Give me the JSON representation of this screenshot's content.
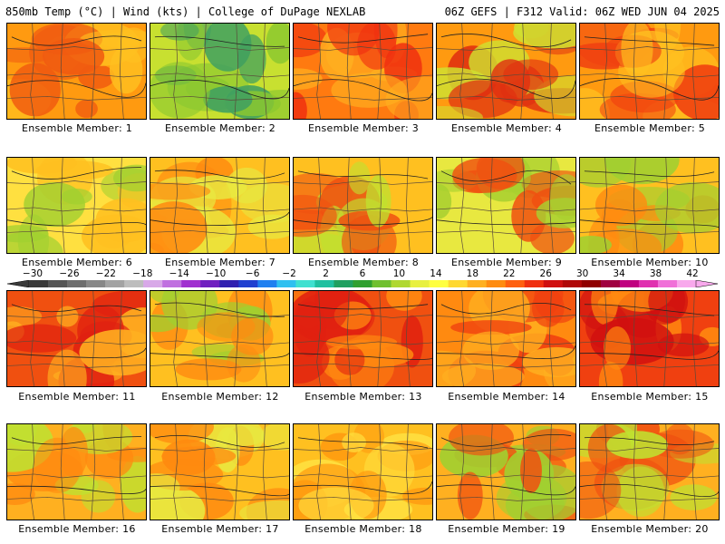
{
  "header": {
    "left": "850mb Temp (°C) | Wind (kts) | College of DuPage NEXLAB",
    "right": "06Z GEFS | F312 Valid: 06Z WED JUN 04 2025"
  },
  "colorbar": {
    "tick_labels": [
      "−30",
      "−26",
      "−22",
      "−18",
      "−14",
      "−10",
      "−6",
      "−2",
      "2",
      "6",
      "10",
      "14",
      "18",
      "22",
      "26",
      "30",
      "34",
      "38",
      "42"
    ],
    "colors": [
      "#3a3a3a",
      "#555555",
      "#6e6e6e",
      "#888888",
      "#a3a3a3",
      "#bdbdbd",
      "#d8a8e8",
      "#c070e0",
      "#a030d0",
      "#7020c0",
      "#3020b0",
      "#2040d0",
      "#2080f0",
      "#30c0f0",
      "#40e0d0",
      "#20c0a0",
      "#20a060",
      "#30a030",
      "#70c030",
      "#b0d830",
      "#e8f040",
      "#ffff40",
      "#ffd830",
      "#ffb020",
      "#ff8c10",
      "#ff6010",
      "#f03010",
      "#d01010",
      "#b00808",
      "#900000",
      "#a00040",
      "#c00080",
      "#e030b0",
      "#f070d8",
      "#f8a8ec"
    ]
  },
  "panels": [
    {
      "label": "Ensemble Member: 1",
      "palette": [
        "#ff9a10",
        "#ffc020",
        "#f05a10"
      ]
    },
    {
      "label": "Ensemble Member: 2",
      "palette": [
        "#c8e030",
        "#8cc830",
        "#40a060"
      ]
    },
    {
      "label": "Ensemble Member: 3",
      "palette": [
        "#ff7a10",
        "#f03010",
        "#ffb020"
      ]
    },
    {
      "label": "Ensemble Member: 4",
      "palette": [
        "#ff9a10",
        "#d0e030",
        "#e03010"
      ]
    },
    {
      "label": "Ensemble Member: 5",
      "palette": [
        "#ff9a10",
        "#f04010",
        "#ffc020"
      ]
    },
    {
      "label": "Ensemble Member: 6",
      "palette": [
        "#ffe040",
        "#ffc020",
        "#a0d030"
      ]
    },
    {
      "label": "Ensemble Member: 7",
      "palette": [
        "#ffc020",
        "#ff8a10",
        "#e8e840"
      ]
    },
    {
      "label": "Ensemble Member: 8",
      "palette": [
        "#ffc020",
        "#f05010",
        "#c0e030"
      ]
    },
    {
      "label": "Ensemble Member: 9",
      "palette": [
        "#e8e840",
        "#a8d030",
        "#f05010"
      ]
    },
    {
      "label": "Ensemble Member: 10",
      "palette": [
        "#ffc020",
        "#ff8a10",
        "#a0d030"
      ]
    },
    {
      "label": "Ensemble Member: 11",
      "palette": [
        "#f05010",
        "#e02010",
        "#ffb020"
      ]
    },
    {
      "label": "Ensemble Member: 12",
      "palette": [
        "#ffc020",
        "#a0d030",
        "#ff8a10"
      ]
    },
    {
      "label": "Ensemble Member: 13",
      "palette": [
        "#f05010",
        "#ff8a10",
        "#e02010"
      ]
    },
    {
      "label": "Ensemble Member: 14",
      "palette": [
        "#ff8a10",
        "#f04010",
        "#ffb020"
      ]
    },
    {
      "label": "Ensemble Member: 15",
      "palette": [
        "#f04010",
        "#ff8a10",
        "#d01010"
      ]
    },
    {
      "label": "Ensemble Member: 16",
      "palette": [
        "#ffb020",
        "#c0e030",
        "#ff8a10"
      ]
    },
    {
      "label": "Ensemble Member: 17",
      "palette": [
        "#ffc020",
        "#e8e840",
        "#ff8a10"
      ]
    },
    {
      "label": "Ensemble Member: 18",
      "palette": [
        "#ffc020",
        "#ffe040",
        "#ff9a10"
      ]
    },
    {
      "label": "Ensemble Member: 19",
      "palette": [
        "#ffb020",
        "#a0d030",
        "#f05010"
      ]
    },
    {
      "label": "Ensemble Member: 20",
      "palette": [
        "#ffb020",
        "#f05010",
        "#c0e030"
      ]
    }
  ]
}
